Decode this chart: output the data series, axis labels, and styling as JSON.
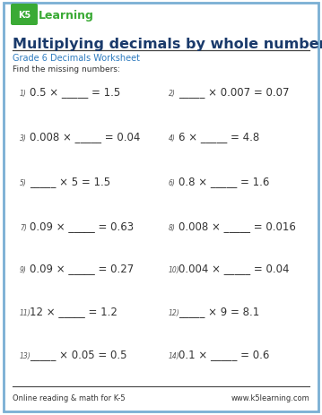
{
  "title": "Multiplying decimals by whole numbers",
  "subtitle": "Grade 6 Decimals Worksheet",
  "instruction": "Find the missing numbers:",
  "title_color": "#1a3a6b",
  "subtitle_color": "#2e7bbf",
  "text_color": "#333333",
  "border_color": "#7aafd4",
  "footer_left": "Online reading & math for K-5",
  "footer_right": "www.k5learning.com",
  "problems_left": [
    {
      "num": "1)",
      "text": "0.5 × _____ = 1.5"
    },
    {
      "num": "3)",
      "text": "0.008 × _____ = 0.04"
    },
    {
      "num": "5)",
      "text": "_____ × 5 = 1.5"
    },
    {
      "num": "7)",
      "text": "0.09 × _____ = 0.63"
    },
    {
      "num": "9)",
      "text": "0.09 × _____ = 0.27"
    },
    {
      "num": "11)",
      "text": "12 × _____ = 1.2"
    },
    {
      "num": "13)",
      "text": "_____ × 0.05 = 0.5"
    }
  ],
  "problems_right": [
    {
      "num": "2)",
      "text": "_____ × 0.007 = 0.07"
    },
    {
      "num": "4)",
      "text": "6 × _____ = 4.8"
    },
    {
      "num": "6)",
      "text": "0.8 × _____ = 1.6"
    },
    {
      "num": "8)",
      "text": "0.008 × _____ = 0.016"
    },
    {
      "num": "10)",
      "text": "0.004 × _____ = 0.04"
    },
    {
      "num": "12)",
      "text": "_____ × 9 = 8.1"
    },
    {
      "num": "14)",
      "text": "0.1 × _____ = 0.6"
    }
  ],
  "bg_color": "#ffffff",
  "logo_green": "#3aaa35",
  "logo_blue": "#2080c0",
  "num_color": "#555555"
}
